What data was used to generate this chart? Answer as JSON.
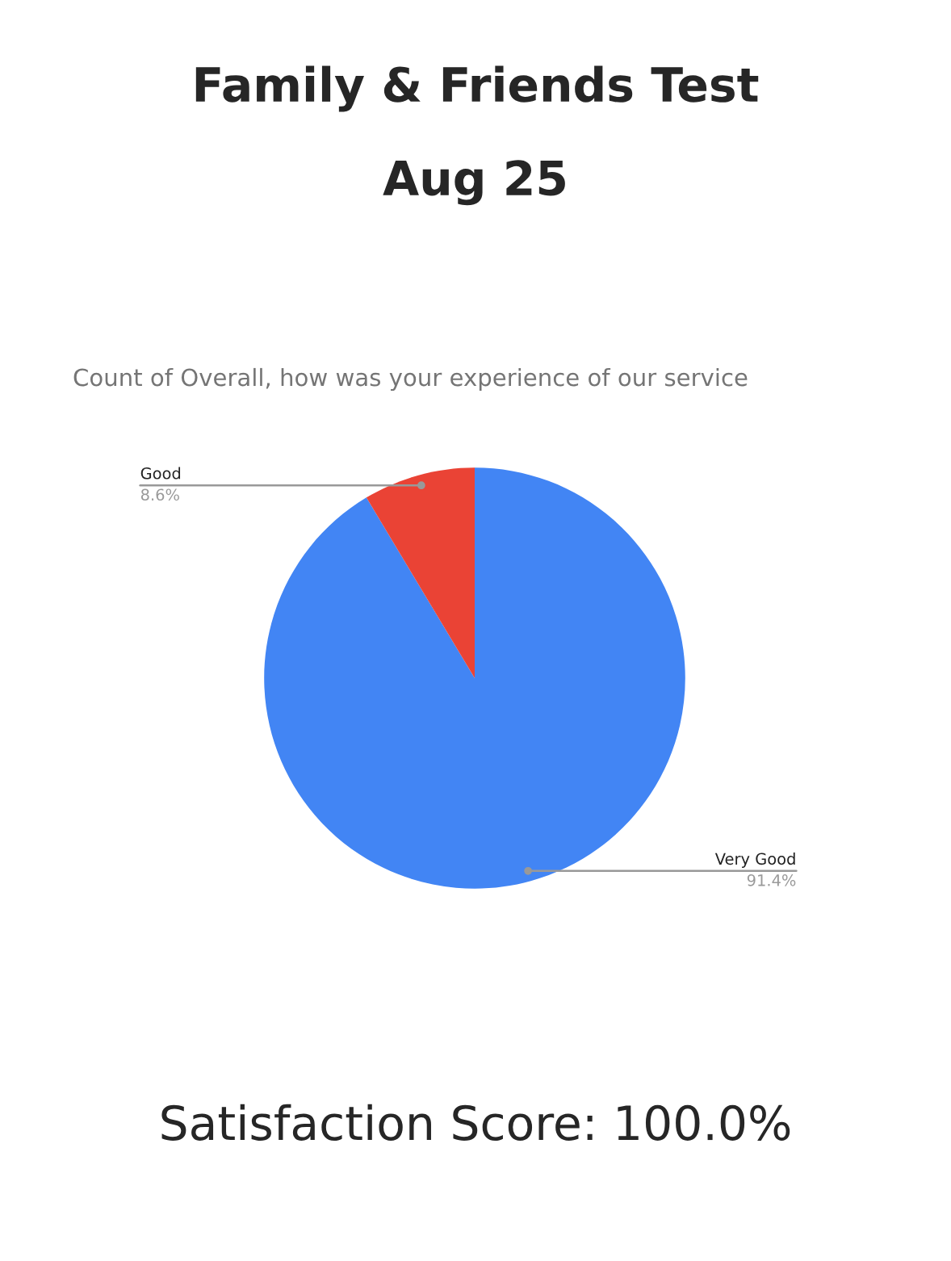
{
  "chart_data": {
    "type": "pie",
    "title": "Family & Friends Test",
    "subtitle": "Aug 25",
    "annotations": [
      "Count of Overall, how was your experience of our service",
      "Satisfaction Score: 100.0%"
    ],
    "categories": [
      "Very Good",
      "Good"
    ],
    "values": [
      91.4,
      8.6
    ],
    "colors": [
      "#4285f4",
      "#ea4335"
    ],
    "value_labels": [
      "91.4%",
      "8.6%"
    ],
    "legend": false
  }
}
